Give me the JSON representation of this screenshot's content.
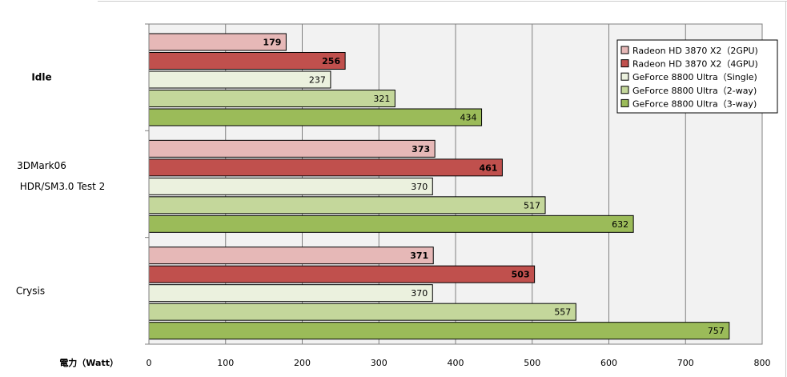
{
  "chart_data": {
    "type": "bar",
    "orientation": "horizontal",
    "xlabel": "電力（Watt）",
    "xlim": [
      0,
      800
    ],
    "xticks": [
      0,
      100,
      200,
      300,
      400,
      500,
      600,
      700,
      800
    ],
    "grid": true,
    "legend_position": "top-right",
    "categories": [
      {
        "lines": [
          "Idle"
        ],
        "bold": true
      },
      {
        "lines": [
          "3DMark06",
          "HDR/SM3.0 Test 2"
        ],
        "bold": false
      },
      {
        "lines": [
          "Crysis"
        ],
        "bold": false
      }
    ],
    "series": [
      {
        "name": "Radeon HD 3870 X2（2GPU)",
        "color": "#e6b8b7",
        "bold_labels": true,
        "values": [
          179,
          373,
          371
        ]
      },
      {
        "name": "Radeon HD 3870 X2（4GPU)",
        "color": "#c0504d",
        "bold_labels": true,
        "values": [
          256,
          461,
          503
        ]
      },
      {
        "name": "GeForce 8800 Ultra（Single)",
        "color": "#ebf1de",
        "bold_labels": false,
        "values": [
          237,
          370,
          370
        ]
      },
      {
        "name": "GeForce 8800 Ultra（2-way)",
        "color": "#c4d79b",
        "bold_labels": false,
        "values": [
          321,
          517,
          557
        ]
      },
      {
        "name": "GeForce 8800 Ultra（3-way)",
        "color": "#9bbb59",
        "bold_labels": false,
        "values": [
          434,
          632,
          757
        ]
      }
    ]
  }
}
